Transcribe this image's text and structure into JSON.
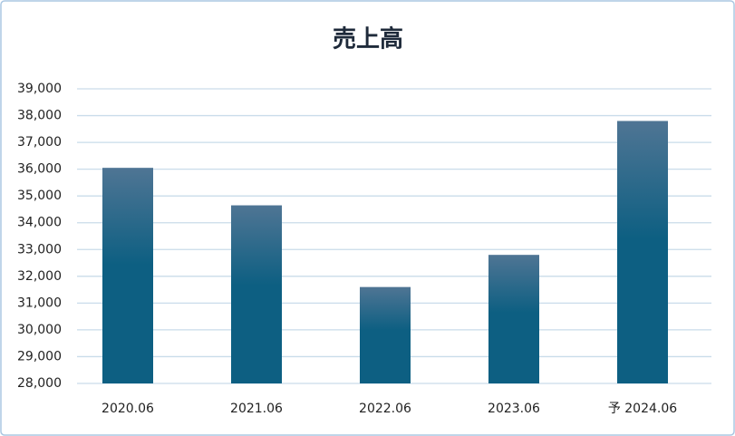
{
  "chart_data": {
    "type": "bar",
    "title": "売上高",
    "categories": [
      "2020.06",
      "2021.06",
      "2022.06",
      "2023.06",
      "予 2024.06"
    ],
    "values": [
      36050,
      34650,
      31600,
      32800,
      37800
    ],
    "color": "#0d5f82",
    "ylim": [
      28000,
      39000
    ],
    "yticks": [
      {
        "value": 28000,
        "label": "28,000"
      },
      {
        "value": 29000,
        "label": "29,000"
      },
      {
        "value": 30000,
        "label": "30,000"
      },
      {
        "value": 31000,
        "label": "31,000"
      },
      {
        "value": 32000,
        "label": "32,000"
      },
      {
        "value": 33000,
        "label": "33,000"
      },
      {
        "value": 34000,
        "label": "34,000"
      },
      {
        "value": 35000,
        "label": "35,000"
      },
      {
        "value": 36000,
        "label": "36,000"
      },
      {
        "value": 37000,
        "label": "37,000"
      },
      {
        "value": 38000,
        "label": "38,000"
      },
      {
        "value": 39000,
        "label": "39,000"
      }
    ],
    "grid": true
  }
}
